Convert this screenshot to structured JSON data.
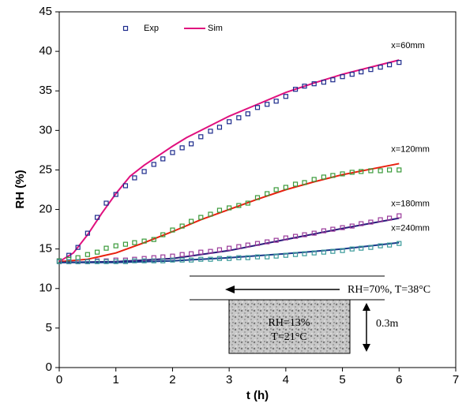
{
  "chart_data": {
    "type": "line",
    "xlabel": "t (h)",
    "ylabel": "RH (%)",
    "xlim": [
      0,
      7
    ],
    "ylim": [
      0,
      45
    ],
    "xticks": [
      0,
      1,
      2,
      3,
      4,
      5,
      6,
      7
    ],
    "yticks": [
      0,
      5,
      10,
      15,
      20,
      25,
      30,
      35,
      40,
      45
    ],
    "legend": [
      {
        "name": "Exp",
        "color": "#1c2a8c"
      },
      {
        "name": "Sim",
        "color": "#e0107e"
      }
    ],
    "exp_x": [
      0,
      0.17,
      0.33,
      0.5,
      0.67,
      0.83,
      1,
      1.17,
      1.33,
      1.5,
      1.67,
      1.83,
      2,
      2.17,
      2.33,
      2.5,
      2.67,
      2.83,
      3,
      3.17,
      3.33,
      3.5,
      3.67,
      3.83,
      4,
      4.17,
      4.33,
      4.5,
      4.67,
      4.83,
      5,
      5.17,
      5.33,
      5.5,
      5.67,
      5.83,
      6
    ],
    "curves": [
      {
        "label": "x=60mm",
        "exp": {
          "color": "#1c2a8c",
          "values": [
            13.5,
            14.2,
            15.2,
            17,
            19,
            20.8,
            21.9,
            23,
            24,
            24.8,
            25.7,
            26.4,
            27.2,
            27.8,
            28.3,
            29.2,
            29.9,
            30.4,
            31.1,
            31.6,
            32.1,
            32.9,
            33.3,
            33.7,
            34.3,
            35.2,
            35.6,
            35.9,
            36.1,
            36.4,
            36.8,
            37.1,
            37.4,
            37.7,
            38,
            38.3,
            38.6
          ]
        },
        "sim": {
          "color": "#e0107e",
          "x": [
            0,
            0.25,
            0.5,
            0.75,
            1,
            1.25,
            1.5,
            1.75,
            2,
            2.25,
            2.5,
            3,
            3.5,
            4,
            4.5,
            5,
            5.5,
            6
          ],
          "values": [
            13.4,
            14.5,
            16.8,
            19.5,
            22,
            24.2,
            25.6,
            26.8,
            28,
            29.1,
            30,
            31.8,
            33.3,
            34.8,
            36,
            37.1,
            38,
            38.9
          ]
        }
      },
      {
        "label": "x=120mm",
        "exp": {
          "color": "#3a9a3a",
          "values": [
            13.5,
            13.7,
            13.9,
            14.3,
            14.6,
            15.1,
            15.4,
            15.6,
            15.8,
            16,
            16.2,
            16.8,
            17.4,
            17.9,
            18.5,
            19,
            19.4,
            19.9,
            20.2,
            20.5,
            20.8,
            21.5,
            22,
            22.5,
            22.8,
            23.2,
            23.4,
            23.8,
            24.1,
            24.3,
            24.5,
            24.7,
            24.8,
            24.9,
            24.9,
            25,
            25
          ]
        },
        "sim": {
          "color": "#e8200e",
          "x": [
            0,
            0.5,
            1,
            1.5,
            2,
            2.5,
            3,
            3.5,
            4,
            4.5,
            5,
            5.5,
            6
          ],
          "values": [
            13.4,
            13.7,
            14.5,
            15.8,
            17.2,
            18.7,
            20,
            21.3,
            22.5,
            23.5,
            24.4,
            25.1,
            25.8
          ]
        }
      },
      {
        "label": "x=180mm",
        "exp": {
          "color": "#9a3a9a",
          "values": [
            13.4,
            13.4,
            13.4,
            13.4,
            13.5,
            13.5,
            13.6,
            13.6,
            13.7,
            13.8,
            13.9,
            14.0,
            14.1,
            14.3,
            14.4,
            14.6,
            14.7,
            14.9,
            15.1,
            15.3,
            15.5,
            15.7,
            15.9,
            16.1,
            16.4,
            16.6,
            16.8,
            17.0,
            17.3,
            17.5,
            17.7,
            17.9,
            18.2,
            18.4,
            18.7,
            18.9,
            19.2
          ]
        },
        "sim": {
          "color": "#2a1a7a",
          "x": [
            0,
            1,
            2,
            3,
            4,
            5,
            6
          ],
          "values": [
            13.3,
            13.4,
            13.8,
            14.8,
            16.2,
            17.6,
            18.9
          ]
        }
      },
      {
        "label": "x=240mm",
        "exp": {
          "color": "#3a9a9a",
          "values": [
            13.4,
            13.4,
            13.4,
            13.4,
            13.4,
            13.4,
            13.4,
            13.4,
            13.5,
            13.5,
            13.5,
            13.5,
            13.6,
            13.6,
            13.6,
            13.7,
            13.7,
            13.8,
            13.8,
            13.9,
            13.9,
            14.0,
            14.0,
            14.1,
            14.2,
            14.3,
            14.4,
            14.5,
            14.6,
            14.7,
            14.8,
            15.0,
            15.1,
            15.2,
            15.4,
            15.5,
            15.7
          ]
        },
        "sim": {
          "color": "#1a3a8a",
          "x": [
            0,
            1,
            2,
            3,
            4,
            5,
            6
          ],
          "values": [
            13.3,
            13.3,
            13.5,
            13.9,
            14.4,
            15.0,
            15.8
          ]
        }
      }
    ],
    "inset": {
      "flow": "RH=70%, T=38°C",
      "rh": "RH=13%",
      "temp": "T=21°C",
      "depth": "0.3m"
    }
  }
}
